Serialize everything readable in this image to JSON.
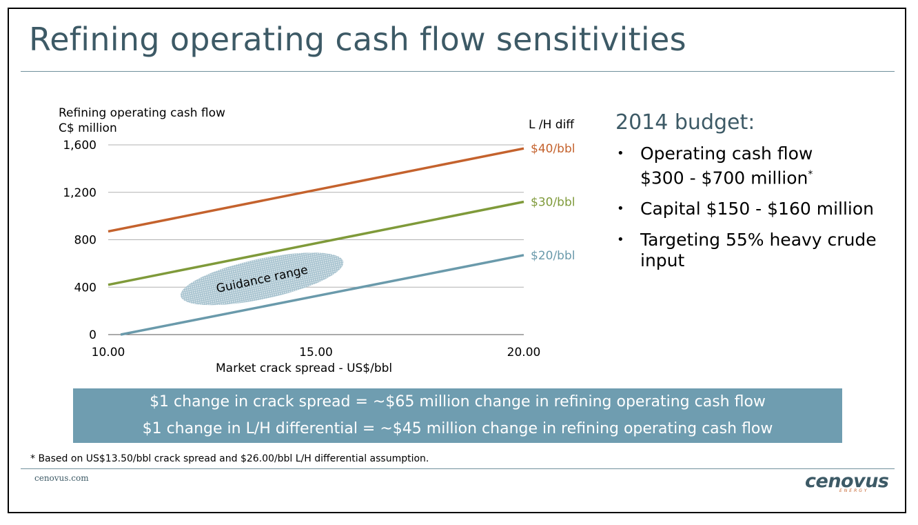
{
  "title": "Refining operating cash flow sensitivities",
  "chart_data": {
    "type": "line",
    "ylabel_line1": "Refining operating cash flow",
    "ylabel_line2": "C$ million",
    "xlabel": "Market crack spread - US$/bbl",
    "legend_title": "L /H diff",
    "xlim": [
      10,
      20
    ],
    "ylim": [
      0,
      1600
    ],
    "x_ticks": [
      "10.00",
      "15.00",
      "20.00"
    ],
    "y_ticks": [
      "0",
      "400",
      "800",
      "1,200",
      "1,600"
    ],
    "y_tick_values": [
      0,
      400,
      800,
      1200,
      1600
    ],
    "x_tick_values": [
      10,
      15,
      20
    ],
    "grid": true,
    "series": [
      {
        "name": "$40/bbl",
        "color": "#c4622d",
        "x": [
          10,
          20
        ],
        "y": [
          870,
          1570
        ]
      },
      {
        "name": "$30/bbl",
        "color": "#7f9a3a",
        "x": [
          10,
          20
        ],
        "y": [
          420,
          1120
        ]
      },
      {
        "name": "$20/bbl",
        "color": "#6a9aab",
        "x": [
          10.3,
          20
        ],
        "y": [
          0,
          670
        ]
      }
    ],
    "annotation": {
      "text": "Guidance range",
      "center": [
        13.7,
        470
      ],
      "rx_units": 2.0,
      "ry_units": 170,
      "angle_deg": -12,
      "color": "#a9c4d0"
    }
  },
  "budget": {
    "title": "2014 budget:",
    "item1_line1": "Operating cash flow",
    "item1_line2": "$300 - $700 million",
    "item1_sup": "*",
    "item2": "Capital $150 - $160 million",
    "item3": "Targeting 55% heavy crude input"
  },
  "summary": {
    "line1": "$1 change in crack spread = ~$65 million change in refining operating cash flow",
    "line2": "$1 change in L/H differential = ~$45 million change in refining operating cash flow"
  },
  "footnote": "* Based on US$13.50/bbl crack spread and $26.00/bbl L/H differential assumption.",
  "footer": {
    "url": "cenovus.com",
    "logo_text": "cenovus",
    "logo_sub": "ENERGY"
  },
  "colors": {
    "title": "#3d5a66",
    "summary_box": "#6f9db0"
  }
}
